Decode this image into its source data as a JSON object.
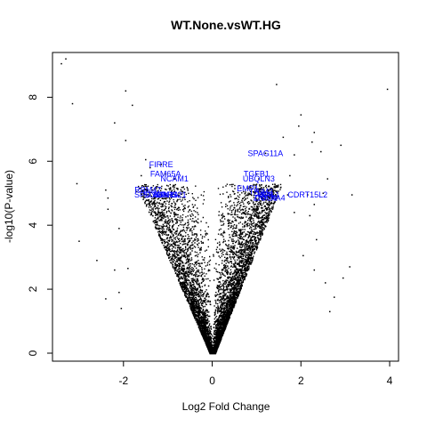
{
  "chart_data": {
    "type": "scatter",
    "title": "WT.None.vsWT.HG",
    "xlabel": "Log2 Fold Change",
    "ylabel": "-log10(P-value)",
    "xlim": [
      -3.6,
      4.2
    ],
    "ylim": [
      -0.25,
      9.4
    ],
    "xticks": [
      -2,
      0,
      2,
      4
    ],
    "yticks": [
      0,
      2,
      4,
      6,
      8
    ],
    "point_color": "#000000",
    "label_color": "#0000ff",
    "density_shape": {
      "description_free_note": "",
      "left_edge_slope": 3.2,
      "right_edge_slope": 3.5,
      "dense_point_count": 7000
    },
    "sparse_points": [
      {
        "x": -3.4,
        "y": 9.05
      },
      {
        "x": -3.3,
        "y": 9.2
      },
      {
        "x": -3.15,
        "y": 7.8
      },
      {
        "x": -1.95,
        "y": 8.2
      },
      {
        "x": -1.8,
        "y": 7.75
      },
      {
        "x": -2.2,
        "y": 7.2
      },
      {
        "x": -1.95,
        "y": 6.65
      },
      {
        "x": -3.05,
        "y": 5.3
      },
      {
        "x": -3.0,
        "y": 3.5
      },
      {
        "x": -2.4,
        "y": 5.1
      },
      {
        "x": -2.35,
        "y": 4.85
      },
      {
        "x": -2.35,
        "y": 4.5
      },
      {
        "x": -2.1,
        "y": 3.9
      },
      {
        "x": -2.6,
        "y": 2.9
      },
      {
        "x": -2.4,
        "y": 1.7
      },
      {
        "x": -2.2,
        "y": 2.6
      },
      {
        "x": -2.05,
        "y": 1.4
      },
      {
        "x": -1.9,
        "y": 2.65
      },
      {
        "x": -1.5,
        "y": 6.05
      },
      {
        "x": -1.4,
        "y": 5.8
      },
      {
        "x": -1.6,
        "y": 5.55
      },
      {
        "x": -1.7,
        "y": 5.05
      },
      {
        "x": -1.55,
        "y": 4.9
      },
      {
        "x": -2.1,
        "y": 1.9
      },
      {
        "x": 1.45,
        "y": 8.4
      },
      {
        "x": 2.0,
        "y": 7.45
      },
      {
        "x": 1.95,
        "y": 7.1
      },
      {
        "x": 1.6,
        "y": 6.75
      },
      {
        "x": 2.3,
        "y": 6.9
      },
      {
        "x": 2.25,
        "y": 6.6
      },
      {
        "x": 2.45,
        "y": 6.3
      },
      {
        "x": 2.9,
        "y": 6.5
      },
      {
        "x": 1.85,
        "y": 6.2
      },
      {
        "x": 3.95,
        "y": 8.25
      },
      {
        "x": 3.15,
        "y": 4.95
      },
      {
        "x": 2.6,
        "y": 5.45
      },
      {
        "x": 2.5,
        "y": 5.0
      },
      {
        "x": 2.3,
        "y": 4.65
      },
      {
        "x": 1.75,
        "y": 5.55
      },
      {
        "x": 1.7,
        "y": 4.95
      },
      {
        "x": 1.85,
        "y": 4.4
      },
      {
        "x": 2.2,
        "y": 4.3
      },
      {
        "x": 2.05,
        "y": 3.05
      },
      {
        "x": 2.35,
        "y": 3.55
      },
      {
        "x": 2.55,
        "y": 2.2
      },
      {
        "x": 2.75,
        "y": 1.75
      },
      {
        "x": 2.3,
        "y": 2.6
      },
      {
        "x": 2.65,
        "y": 1.3
      },
      {
        "x": 2.95,
        "y": 2.35
      },
      {
        "x": 3.1,
        "y": 2.7
      }
    ],
    "labeled_genes": [
      {
        "label": "FIRRE",
        "x": -1.15,
        "y": 5.9
      },
      {
        "label": "FAM65A",
        "x": -1.05,
        "y": 5.6
      },
      {
        "label": "NCAM1",
        "x": -0.85,
        "y": 5.45
      },
      {
        "label": "RBM47",
        "x": -1.45,
        "y": 5.1
      },
      {
        "label": "SPDYE3",
        "x": -1.4,
        "y": 4.95
      },
      {
        "label": "SOWAHA",
        "x": -1.15,
        "y": 4.95
      },
      {
        "label": "STK11",
        "x": -1.05,
        "y": 4.95
      },
      {
        "label": "WARS21",
        "x": -0.95,
        "y": 4.95
      },
      {
        "label": "SPAG11A",
        "x": 1.2,
        "y": 6.25
      },
      {
        "label": "TGFB1",
        "x": 1.0,
        "y": 5.6
      },
      {
        "label": "UBQLN3",
        "x": 1.05,
        "y": 5.45
      },
      {
        "label": "EMP1",
        "x": 0.8,
        "y": 5.15
      },
      {
        "label": "TRIM2",
        "x": 1.1,
        "y": 5.05
      },
      {
        "label": "NPB",
        "x": 1.2,
        "y": 4.95
      },
      {
        "label": "SAL1",
        "x": 1.3,
        "y": 4.95
      },
      {
        "label": "ZNF81",
        "x": 1.2,
        "y": 4.85
      },
      {
        "label": "COL4A4",
        "x": 1.3,
        "y": 4.85
      },
      {
        "label": "CDRT15L2",
        "x": 2.15,
        "y": 4.95
      }
    ]
  }
}
